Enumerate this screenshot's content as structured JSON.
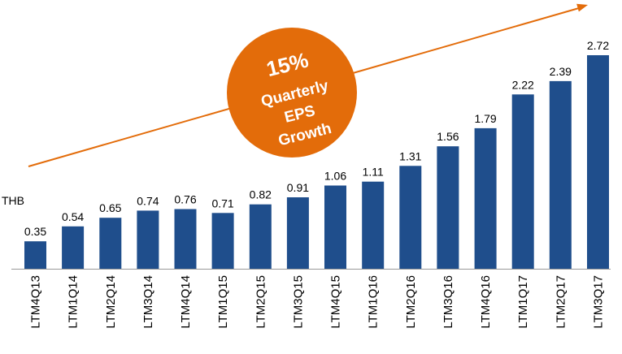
{
  "chart_data": {
    "type": "bar",
    "ylabel": "THB",
    "categories": [
      "LTM4Q13",
      "LTM1Q14",
      "LTM2Q14",
      "LTM3Q14",
      "LTM4Q14",
      "LTM1Q15",
      "LTM2Q15",
      "LTM3Q15",
      "LTM4Q15",
      "LTM1Q16",
      "LTM2Q16",
      "LTM3Q16",
      "LTM4Q16",
      "LTM1Q17",
      "LTM2Q17",
      "LTM3Q17"
    ],
    "values": [
      0.35,
      0.54,
      0.65,
      0.74,
      0.76,
      0.71,
      0.82,
      0.91,
      1.06,
      1.11,
      1.31,
      1.56,
      1.79,
      2.22,
      2.39,
      2.72
    ],
    "value_labels": [
      "0.35",
      "0.54",
      "0.65",
      "0.74",
      "0.76",
      "0.71",
      "0.82",
      "0.91",
      "1.06",
      "1.11",
      "1.31",
      "1.56",
      "1.79",
      "2.22",
      "2.39",
      "2.72"
    ],
    "ylim": [
      0,
      2.72
    ],
    "grid": false,
    "bar_color": "#1f4e8c",
    "annotation": {
      "lines": [
        "15%",
        "Quarterly",
        "EPS",
        "Growth"
      ],
      "color": "#e36c0a",
      "text_color": "#ffffff"
    },
    "trend_arrow_color": "#e36c0a"
  }
}
